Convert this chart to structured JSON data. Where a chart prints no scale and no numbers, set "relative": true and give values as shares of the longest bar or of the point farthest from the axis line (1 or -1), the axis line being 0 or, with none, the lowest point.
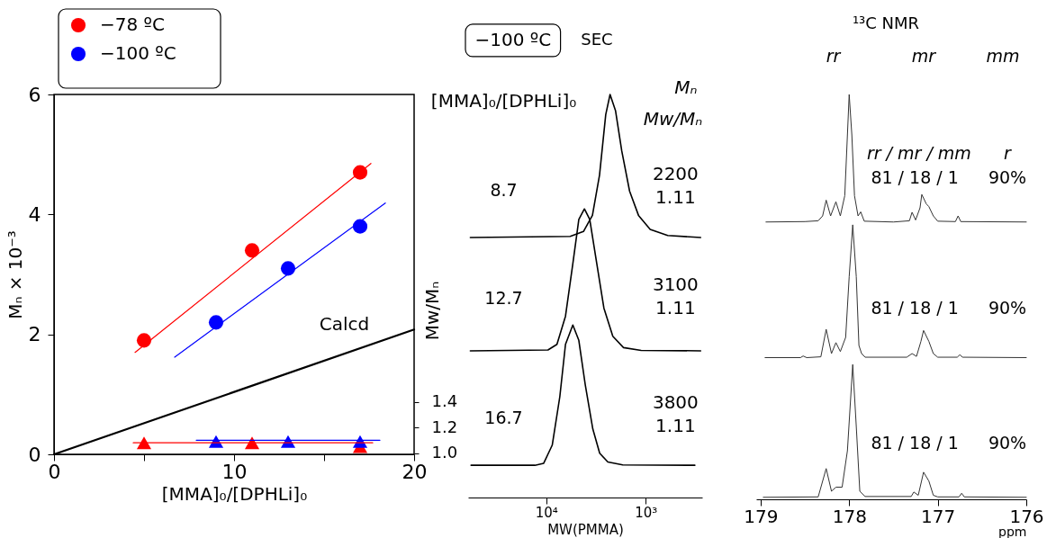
{
  "chart_data": [
    {
      "type": "scatter",
      "xlabel": "[MMA]₀/[DPHLi]₀",
      "ylabel": "Mₙ × 10⁻³",
      "y2label": "Mw/Mₙ",
      "xlim": [
        0,
        20
      ],
      "xticks": [
        0,
        {
          "value": 5,
          "label": null
        },
        10,
        {
          "value": 15,
          "label": null
        },
        20
      ],
      "ylim": [
        0,
        6
      ],
      "yticks": [
        0,
        2,
        4,
        6
      ],
      "y2lim": [
        0.99,
        3.8
      ],
      "y2ticks": [
        {
          "value": 1,
          "label": "1.0"
        },
        1.2,
        1.4
      ],
      "legend": "top left",
      "series": [
        {
          "name": "−78 ºC",
          "type": "scatter",
          "marker": "circle",
          "color": "#ff0000",
          "x": [
            5,
            11,
            17
          ],
          "values": [
            1.9,
            3.4,
            4.7
          ]
        },
        {
          "name": "−100 ºC",
          "type": "scatter",
          "marker": "circle",
          "color": "#0000ff",
          "x": [
            9,
            13,
            17
          ],
          "values": [
            2.2,
            3.1,
            3.8
          ]
        },
        {
          "type": "scatter",
          "marker": "triangle",
          "axis": "y2",
          "color": "#ff0000",
          "x": [
            5,
            11,
            17
          ],
          "values": [
            1.08,
            1.08,
            1.05
          ]
        },
        {
          "type": "scatter",
          "marker": "triangle",
          "axis": "y2",
          "color": "#0000ff",
          "x": [
            9,
            13,
            17
          ],
          "values": [
            1.09,
            1.09,
            1.09
          ]
        },
        {
          "type": "line",
          "color": "#ff0000",
          "x": [
            4.5,
            17.6
          ],
          "values": [
            1.7,
            4.85
          ]
        },
        {
          "type": "line",
          "color": "#0000ff",
          "x": [
            6.7,
            18.4
          ],
          "values": [
            1.62,
            4.19
          ]
        },
        {
          "type": "line",
          "axis": "y2",
          "color": "#ff0000",
          "x": [
            4.4,
            17.7
          ],
          "values": [
            1.08,
            1.08
          ]
        },
        {
          "type": "line",
          "axis": "y2",
          "color": "#0000ff",
          "x": [
            7.9,
            18.1
          ],
          "values": [
            1.1,
            1.1
          ]
        },
        {
          "name": "Calcd",
          "type": "line",
          "color": "#000000",
          "x": [
            0,
            20
          ],
          "values": [
            0,
            2.08
          ]
        }
      ]
    },
    {
      "type": "line",
      "relative": true,
      "title": "SEC",
      "log": "x",
      "xlabel": "MW(PMMA)",
      "xlim": [
        61000,
        270
      ],
      "xticks": [
        {
          "value": 10000,
          "label": "10⁴"
        },
        {
          "value": 1000,
          "label": "10³"
        }
      ],
      "tick_labels": "x",
      "annotations": [
        "−100 ºC",
        "[MMA]₀/[DPHLi]₀",
        "Mₙ",
        "Mw/Mₙ",
        "2200",
        "1.11",
        "3100",
        "1.11",
        "3800",
        "1.11"
      ],
      "series": [
        {
          "name": "8.7",
          "color": "#000000",
          "x": [
            58000,
            5740,
            4220,
            3430,
            2910,
            2520,
            2280,
            2010,
            1740,
            1450,
            1180,
            900,
            600,
            280
          ],
          "values": [
            0.645,
            0.648,
            0.66,
            0.7,
            0.8,
            0.95,
            1.0,
            0.96,
            0.86,
            0.76,
            0.7,
            0.665,
            0.65,
            0.645
          ]
        },
        {
          "name": "12.7",
          "color": "#000000",
          "x": [
            58000,
            9600,
            7800,
            6400,
            5400,
            4700,
            4130,
            3650,
            3100,
            2630,
            2140,
            1670,
            1110,
            280
          ],
          "values": [
            0.364,
            0.366,
            0.38,
            0.45,
            0.58,
            0.69,
            0.716,
            0.69,
            0.58,
            0.47,
            0.4,
            0.372,
            0.365,
            0.364
          ]
        },
        {
          "name": "16.7",
          "color": "#000000",
          "x": [
            57000,
            13000,
            10600,
            8700,
            7300,
            6400,
            5400,
            4700,
            4050,
            3400,
            2900,
            2400,
            1700,
            320
          ],
          "values": [
            0.08,
            0.08,
            0.085,
            0.13,
            0.25,
            0.38,
            0.428,
            0.39,
            0.28,
            0.17,
            0.11,
            0.088,
            0.081,
            0.08
          ]
        }
      ]
    },
    {
      "type": "line",
      "relative": true,
      "title": "¹³C NMR",
      "xlabel": "ppm",
      "xlim": [
        179.05,
        176
      ],
      "xticks": [
        179,
        178,
        177,
        176
      ],
      "tick_labels": "x",
      "annotations": [
        "rr",
        "mr",
        "mm",
        "rr / mr / mm",
        "r",
        "81 / 18 / 1",
        "90%",
        "81 / 18 / 1",
        "90%",
        "81 / 18 / 1",
        "90%"
      ],
      "series": [
        {
          "color": "#333333",
          "x": [
            178.94,
            178.5,
            178.35,
            178.3,
            178.26,
            178.21,
            178.15,
            178.1,
            178.05,
            178.02,
            178.0,
            177.97,
            177.94,
            177.9,
            177.87,
            177.83,
            177.5,
            177.32,
            177.29,
            177.25,
            177.2,
            177.18,
            177.13,
            177.1,
            177.05,
            177.0,
            176.8,
            176.77,
            176.74,
            176.0
          ],
          "values": [
            0.685,
            0.686,
            0.688,
            0.7,
            0.739,
            0.7,
            0.735,
            0.7,
            0.75,
            0.9,
            1.0,
            0.9,
            0.75,
            0.7,
            0.71,
            0.687,
            0.685,
            0.688,
            0.709,
            0.69,
            0.72,
            0.753,
            0.73,
            0.723,
            0.7,
            0.687,
            0.686,
            0.7,
            0.686,
            0.685
          ]
        },
        {
          "color": "#333333",
          "x": [
            178.95,
            178.55,
            178.52,
            178.48,
            178.32,
            178.26,
            178.2,
            178.15,
            178.1,
            178.04,
            178.0,
            177.96,
            177.92,
            177.89,
            177.86,
            177.82,
            177.35,
            177.29,
            177.24,
            177.19,
            177.16,
            177.1,
            177.05,
            177.0,
            176.78,
            176.75,
            176.72,
            176.0
          ],
          "values": [
            0.35,
            0.35,
            0.354,
            0.35,
            0.352,
            0.42,
            0.36,
            0.387,
            0.365,
            0.4,
            0.55,
            0.678,
            0.55,
            0.38,
            0.36,
            0.351,
            0.351,
            0.36,
            0.353,
            0.39,
            0.417,
            0.39,
            0.36,
            0.351,
            0.351,
            0.357,
            0.351,
            0.35
          ]
        },
        {
          "color": "#333333",
          "x": [
            178.97,
            178.35,
            178.26,
            178.2,
            178.15,
            178.08,
            178.02,
            177.96,
            177.92,
            177.88,
            177.82,
            177.3,
            177.27,
            177.22,
            177.16,
            177.1,
            177.05,
            177.0,
            176.76,
            176.73,
            176.7,
            176.0
          ],
          "values": [
            0.005,
            0.006,
            0.076,
            0.02,
            0.03,
            0.03,
            0.12,
            0.333,
            0.18,
            0.02,
            0.007,
            0.007,
            0.018,
            0.01,
            0.067,
            0.045,
            0.01,
            0.006,
            0.006,
            0.015,
            0.006,
            0.005
          ]
        }
      ]
    }
  ]
}
